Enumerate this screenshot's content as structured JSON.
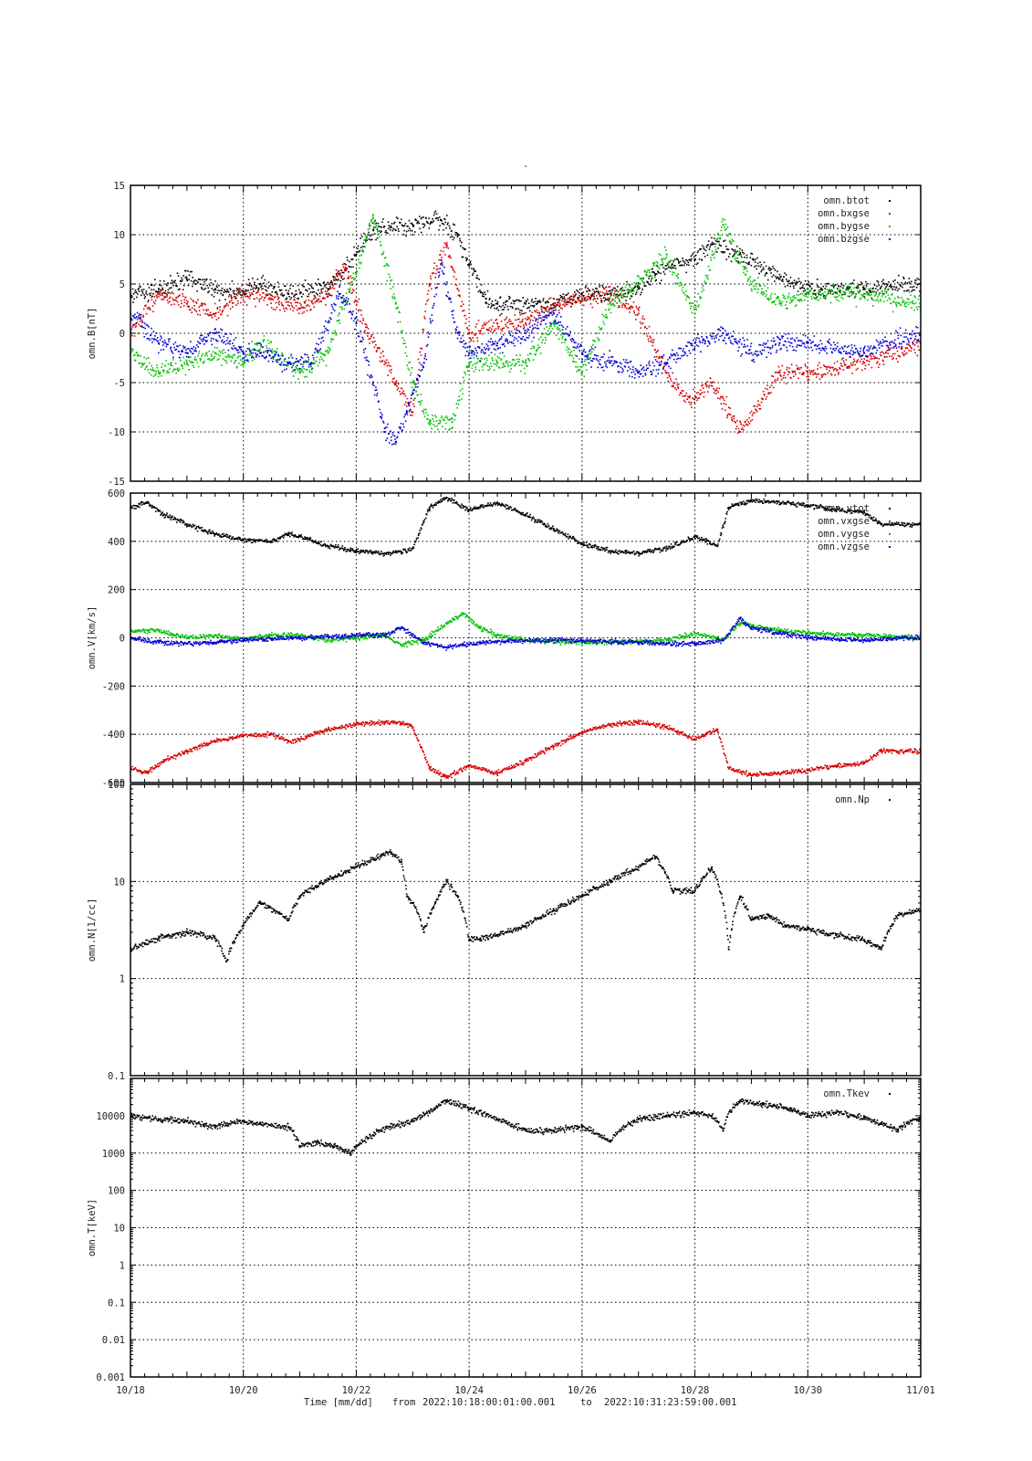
{
  "figure": {
    "title": "-",
    "footer": {
      "time_label": "Time [mm/dd]",
      "from_label": "from",
      "from_value": "2022:10:18:00:01:00.001",
      "to_label": "to",
      "to_value": "2022:10:31:23:59:00.001"
    }
  },
  "colors": {
    "black": "#000000",
    "red": "#d40000",
    "green": "#00c000",
    "blue": "#0000d0"
  },
  "chart_data": [
    {
      "type": "scatter",
      "ylabel": "omn.B[nT]",
      "xlim": [
        0,
        14
      ],
      "x_tick_labels": [
        "10/18",
        "10/20",
        "10/22",
        "10/24",
        "10/26",
        "10/28",
        "10/30",
        "11/01"
      ],
      "ylim": [
        -15,
        15
      ],
      "y_ticks": [
        -15,
        -10,
        -5,
        0,
        5,
        10,
        15
      ],
      "y_scale": "linear",
      "grid": true,
      "legend_position": "top-right",
      "series": [
        {
          "name": "omn.btot",
          "color": "#000000",
          "x": [
            0,
            0.5,
            1,
            1.5,
            2,
            2.3,
            2.8,
            3.5,
            4,
            4.3,
            5,
            5.5,
            5.8,
            6,
            6.3,
            6.5,
            7,
            7.5,
            8,
            8.5,
            9,
            9.3,
            9.6,
            10,
            10.3,
            10.8,
            11.5,
            12,
            13,
            14
          ],
          "y": [
            4,
            4.5,
            5.5,
            4.5,
            4,
            5,
            4,
            4.5,
            8,
            10.5,
            11,
            11.5,
            10,
            7,
            3.5,
            3,
            3,
            3,
            4,
            4,
            4.5,
            6,
            7,
            7.5,
            9,
            8,
            5.5,
            4.5,
            4.5,
            5
          ]
        },
        {
          "name": "omn.bxgse",
          "color": "#d40000",
          "x": [
            0,
            0.5,
            1,
            1.5,
            2,
            2.5,
            3,
            3.5,
            3.8,
            4.2,
            4.7,
            5,
            5.3,
            5.6,
            6,
            6.5,
            7,
            7.5,
            8,
            8.5,
            9,
            9.5,
            9.9,
            10.3,
            10.8,
            11.5,
            12,
            13,
            14
          ],
          "y": [
            0,
            4,
            3,
            2,
            4,
            3.5,
            2.5,
            4,
            6.5,
            0,
            -5,
            -8,
            5,
            9,
            0,
            1,
            1,
            3,
            3.5,
            4,
            2,
            -4,
            -7,
            -5,
            -10,
            -4,
            -4,
            -3,
            -1
          ]
        },
        {
          "name": "omn.bygse",
          "color": "#00c000",
          "x": [
            0,
            0.5,
            1,
            1.5,
            2,
            2.3,
            3,
            3.5,
            3.7,
            4,
            4.3,
            4.7,
            5,
            5.3,
            5.7,
            6,
            6.5,
            7,
            7.5,
            8,
            8.5,
            9,
            9.5,
            10,
            10.5,
            11,
            11.5,
            12,
            13,
            14
          ],
          "y": [
            -2,
            -4,
            -3,
            -2,
            -3,
            -1,
            -4,
            -2,
            2,
            6,
            12,
            3,
            -5,
            -9,
            -9,
            -3,
            -3,
            -3,
            1,
            -4,
            3,
            5,
            8,
            2,
            11,
            5,
            3,
            4,
            4,
            3
          ]
        },
        {
          "name": "omn.bzgse",
          "color": "#0000d0",
          "x": [
            0,
            0.5,
            1,
            1.5,
            2,
            2.3,
            2.8,
            3.2,
            3.7,
            4,
            4.3,
            4.5,
            4.7,
            4.9,
            5.2,
            5.5,
            5.8,
            6,
            6.5,
            7,
            7.5,
            8,
            8.5,
            9,
            9.5,
            10,
            10.5,
            11,
            11.5,
            12,
            13,
            14
          ],
          "y": [
            2,
            -1,
            -2,
            0,
            -2,
            -2,
            -3,
            -3,
            4,
            1,
            -5,
            -10,
            -11,
            -8,
            -3,
            7,
            0,
            -2,
            -1,
            0,
            2,
            -2,
            -3,
            -4,
            -3,
            -1,
            0,
            -2,
            -1,
            -1,
            -2,
            0
          ]
        }
      ]
    },
    {
      "type": "scatter",
      "ylabel": "omn.V[km/s]",
      "xlim": [
        0,
        14
      ],
      "ylim": [
        -600,
        600
      ],
      "y_ticks": [
        -600,
        -400,
        -200,
        0,
        200,
        400,
        600
      ],
      "y_scale": "linear",
      "grid": true,
      "legend_position": "top-right",
      "series": [
        {
          "name": "omn.vtot",
          "color": "#000000",
          "x": [
            0,
            0.3,
            0.6,
            1,
            1.5,
            2,
            2.5,
            2.8,
            3,
            3.5,
            4,
            4.5,
            4.8,
            5,
            5.3,
            5.6,
            6,
            6.5,
            7,
            7.5,
            8,
            8.5,
            9,
            9.5,
            10,
            10.2,
            10.4,
            10.6,
            11,
            12,
            12.5,
            13,
            13.3,
            14
          ],
          "y": [
            540,
            560,
            510,
            470,
            430,
            405,
            400,
            430,
            420,
            380,
            360,
            350,
            355,
            370,
            540,
            580,
            530,
            560,
            510,
            450,
            390,
            360,
            350,
            370,
            420,
            400,
            380,
            540,
            570,
            550,
            530,
            520,
            470,
            470
          ]
        },
        {
          "name": "omn.vxgse",
          "color": "#d40000",
          "x": [
            0,
            0.3,
            0.6,
            1,
            1.5,
            2,
            2.5,
            2.8,
            3,
            3.5,
            4,
            4.5,
            4.8,
            5,
            5.3,
            5.6,
            6,
            6.5,
            7,
            7.5,
            8,
            8.5,
            9,
            9.5,
            10,
            10.2,
            10.4,
            10.6,
            11,
            12,
            12.5,
            13,
            13.3,
            14
          ],
          "y": [
            -540,
            -560,
            -510,
            -470,
            -430,
            -405,
            -400,
            -430,
            -420,
            -380,
            -360,
            -350,
            -355,
            -370,
            -540,
            -580,
            -530,
            -560,
            -510,
            -450,
            -390,
            -360,
            -350,
            -370,
            -420,
            -400,
            -380,
            -540,
            -570,
            -550,
            -530,
            -520,
            -470,
            -470
          ]
        },
        {
          "name": "omn.vygse",
          "color": "#00c000",
          "x": [
            0,
            0.5,
            1,
            1.5,
            2,
            2.5,
            3,
            3.5,
            4,
            4.5,
            4.8,
            5.2,
            5.6,
            5.9,
            6.2,
            6.5,
            7,
            8,
            9,
            9.5,
            10,
            10.5,
            10.8,
            11,
            11.5,
            12,
            13,
            14
          ],
          "y": [
            30,
            30,
            0,
            10,
            -5,
            10,
            10,
            -10,
            0,
            10,
            -30,
            -10,
            60,
            100,
            40,
            10,
            -10,
            -20,
            -15,
            -10,
            20,
            -10,
            60,
            50,
            30,
            20,
            10,
            0
          ]
        },
        {
          "name": "omn.vzgse",
          "color": "#0000d0",
          "x": [
            0,
            0.5,
            1,
            1.5,
            2,
            2.5,
            3,
            3.5,
            4,
            4.5,
            4.8,
            5.2,
            5.6,
            5.9,
            6.2,
            6.5,
            7,
            8,
            9,
            9.5,
            10,
            10.5,
            10.8,
            11,
            11.5,
            12,
            13,
            14
          ],
          "y": [
            0,
            -20,
            -25,
            -20,
            -10,
            -5,
            0,
            5,
            10,
            10,
            40,
            -20,
            -40,
            -30,
            -20,
            -15,
            -10,
            -10,
            -20,
            -25,
            -25,
            -10,
            80,
            40,
            20,
            0,
            -10,
            0
          ]
        }
      ]
    },
    {
      "type": "scatter",
      "ylabel": "omn.N[1/cc]",
      "xlim": [
        0,
        14
      ],
      "ylim": [
        0.1,
        100
      ],
      "y_ticks": [
        0.1,
        1,
        10,
        100
      ],
      "y_scale": "log",
      "grid": true,
      "legend_position": "top-right",
      "series": [
        {
          "name": "omn.Np",
          "color": "#000000",
          "x": [
            0,
            0.5,
            1,
            1.5,
            1.7,
            2,
            2.3,
            2.8,
            3,
            3.3,
            3.6,
            4,
            4.3,
            4.6,
            4.8,
            4.9,
            5,
            5.2,
            5.4,
            5.6,
            5.8,
            6,
            6.2,
            6.5,
            7,
            7.5,
            8,
            8.5,
            9,
            9.3,
            9.6,
            10,
            10.3,
            10.6,
            10.8,
            11,
            11.3,
            11.6,
            12,
            12.5,
            13,
            13.3,
            13.6,
            14
          ],
          "y": [
            2,
            2.6,
            3,
            2.6,
            1.5,
            3.5,
            6,
            4,
            7,
            9,
            11,
            14,
            17,
            20,
            16,
            7,
            6,
            3,
            6,
            10,
            7,
            2.5,
            2.6,
            2.8,
            3.5,
            5,
            7,
            10,
            14,
            18,
            8,
            8,
            14,
            2,
            7,
            4,
            4.5,
            3.5,
            3.2,
            2.8,
            2.5,
            2,
            4.5,
            5
          ]
        }
      ]
    },
    {
      "type": "scatter",
      "ylabel": "omn.T[keV]",
      "xlim": [
        0,
        14
      ],
      "ylim": [
        0.001,
        100000
      ],
      "y_ticks": [
        0.001,
        0.01,
        0.1,
        1,
        10,
        100,
        1000,
        10000
      ],
      "y_tick_labels": [
        "0.001",
        "0.01",
        "0.1",
        "1",
        "10",
        "100",
        "1000",
        "10000"
      ],
      "y_scale": "log",
      "grid": true,
      "legend_position": "top-right",
      "series": [
        {
          "name": "omn.Tkev",
          "color": "#000000",
          "x": [
            0,
            0.5,
            1,
            1.5,
            2,
            2.3,
            2.8,
            3,
            3.3,
            3.6,
            3.9,
            4.3,
            4.6,
            5,
            5.3,
            5.6,
            6,
            6.5,
            7,
            7.5,
            8,
            8.5,
            9,
            9.5,
            10,
            10.3,
            10.5,
            10.8,
            11.2,
            11.7,
            12,
            12.5,
            13,
            13.3,
            13.6,
            14
          ],
          "y": [
            10000,
            8000,
            7000,
            5000,
            7000,
            6000,
            5000,
            1500,
            2000,
            1500,
            1000,
            3000,
            5000,
            7000,
            12000,
            25000,
            15000,
            8000,
            4000,
            4000,
            5000,
            2000,
            8000,
            10000,
            12000,
            10000,
            4000,
            25000,
            20000,
            15000,
            10000,
            12000,
            9000,
            6000,
            4000,
            9000
          ]
        }
      ]
    }
  ]
}
